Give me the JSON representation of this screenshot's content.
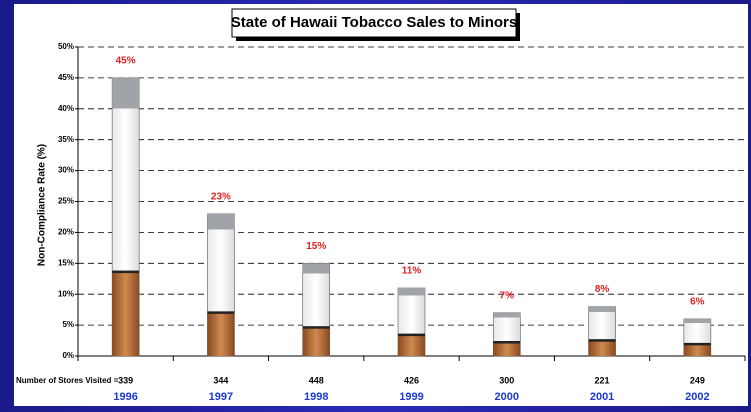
{
  "chart_data": {
    "type": "bar",
    "title": "State of Hawaii Tobacco Sales to Minors",
    "y_label": "Non-Compliance Rate (%)",
    "categories": [
      "1996",
      "1997",
      "1998",
      "1999",
      "2000",
      "2001",
      "2002"
    ],
    "values": [
      45,
      23,
      15,
      11,
      7,
      8,
      6
    ],
    "value_labels": [
      "45%",
      "23%",
      "15%",
      "11%",
      "7%",
      "8%",
      "6%"
    ],
    "stores_label": "Number of Stores Visited =",
    "stores": [
      339,
      344,
      448,
      426,
      300,
      221,
      249
    ],
    "ylim": [
      0,
      50
    ],
    "yticks": [
      {
        "value": 0,
        "label": "0%"
      },
      {
        "value": 5,
        "label": "5%"
      },
      {
        "value": 10,
        "label": "10%"
      },
      {
        "value": 15,
        "label": "15%"
      },
      {
        "value": 20,
        "label": "20%"
      },
      {
        "value": 25,
        "label": "25%"
      },
      {
        "value": 30,
        "label": "30%"
      },
      {
        "value": 35,
        "label": "35%"
      },
      {
        "value": 40,
        "label": "40%"
      },
      {
        "value": 45,
        "label": "45%"
      },
      {
        "value": 50,
        "label": "50%"
      }
    ],
    "grid": true
  }
}
